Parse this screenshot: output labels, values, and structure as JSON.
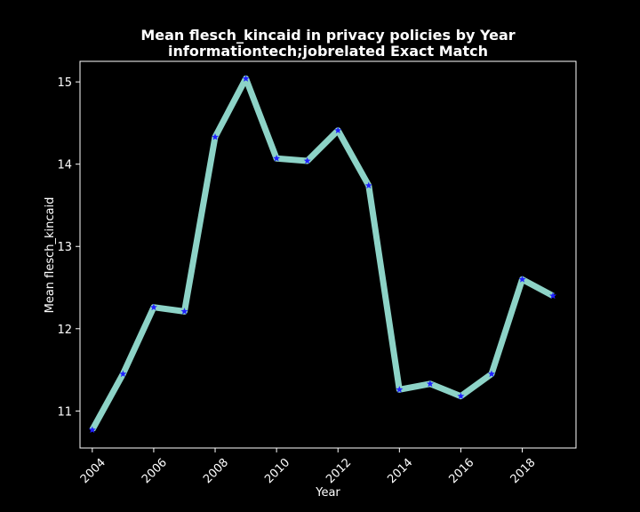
{
  "chart_data": {
    "type": "line",
    "title_line1": "Mean flesch_kincaid in privacy policies by Year",
    "title_line2": "informationtech;jobrelated Exact Match",
    "xlabel": "Year",
    "ylabel": "Mean flesch_kincaid",
    "x": [
      2004,
      2005,
      2006,
      2007,
      2008,
      2009,
      2010,
      2011,
      2012,
      2013,
      2014,
      2015,
      2016,
      2017,
      2018,
      2019
    ],
    "values": [
      10.77,
      11.45,
      12.26,
      12.21,
      14.33,
      15.04,
      14.07,
      14.04,
      14.41,
      13.74,
      11.26,
      11.33,
      11.18,
      11.45,
      12.6,
      12.4
    ],
    "xlim": [
      2003.6,
      2019.75
    ],
    "ylim": [
      10.55,
      15.25
    ],
    "xticks": [
      "2004",
      "2006",
      "2008",
      "2010",
      "2012",
      "2014",
      "2016",
      "2018"
    ],
    "yticks": [
      "11",
      "12",
      "13",
      "14",
      "15"
    ],
    "grid": false,
    "colors": {
      "background": "#000000",
      "line": "#8dd3c7",
      "marker": "#1f1fff",
      "axes": "#ffffff",
      "text": "#ffffff"
    }
  }
}
